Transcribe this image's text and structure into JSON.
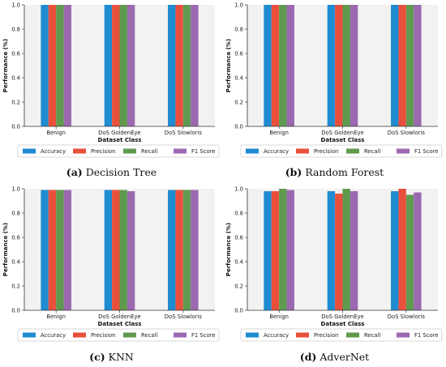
{
  "chart_data": [
    {
      "type": "bar",
      "caption_tag": "(a)",
      "caption_text": "Decision Tree",
      "categories": [
        "Benign",
        "DoS GoldenEye",
        "DoS Slowloris"
      ],
      "xlabel": "Dataset Class",
      "ylabel": "Performance (%)",
      "ylim": [
        0,
        1.0
      ],
      "yticks": [
        "0.0",
        "0.2",
        "0.4",
        "0.6",
        "0.8",
        "1.0"
      ],
      "grid": false,
      "legend_position": "bottom",
      "series": [
        {
          "name": "Accuracy",
          "color": "#1f8bd1",
          "values": [
            1.0,
            1.0,
            1.0
          ]
        },
        {
          "name": "Precision",
          "color": "#e9503c",
          "values": [
            1.0,
            1.0,
            1.0
          ]
        },
        {
          "name": "Recall",
          "color": "#5f9a4e",
          "values": [
            1.0,
            1.0,
            1.0
          ]
        },
        {
          "name": "F1 Score",
          "color": "#9b69b0",
          "values": [
            1.0,
            1.0,
            1.0
          ]
        }
      ]
    },
    {
      "type": "bar",
      "caption_tag": "(b)",
      "caption_text": "Random Forest",
      "categories": [
        "Benign",
        "DoS GoldenEye",
        "DoS Slowloris"
      ],
      "xlabel": "Dataset Class",
      "ylabel": "Performance (%)",
      "ylim": [
        0,
        1.0
      ],
      "yticks": [
        "0.0",
        "0.2",
        "0.4",
        "0.6",
        "0.8",
        "1.0"
      ],
      "grid": false,
      "legend_position": "bottom",
      "series": [
        {
          "name": "Accuracy",
          "color": "#1f8bd1",
          "values": [
            1.0,
            1.0,
            1.0
          ]
        },
        {
          "name": "Precision",
          "color": "#e9503c",
          "values": [
            1.0,
            1.0,
            1.0
          ]
        },
        {
          "name": "Recall",
          "color": "#5f9a4e",
          "values": [
            1.0,
            1.0,
            1.0
          ]
        },
        {
          "name": "F1 Score",
          "color": "#9b69b0",
          "values": [
            1.0,
            1.0,
            1.0
          ]
        }
      ]
    },
    {
      "type": "bar",
      "caption_tag": "(c)",
      "caption_text": "KNN",
      "categories": [
        "Benign",
        "DoS GoldenEye",
        "DoS Slowloris"
      ],
      "xlabel": "Dataset Class",
      "ylabel": "Performance (%)",
      "ylim": [
        0,
        1.0
      ],
      "yticks": [
        "0.0",
        "0.2",
        "0.4",
        "0.6",
        "0.8",
        "1.0"
      ],
      "grid": false,
      "legend_position": "bottom",
      "series": [
        {
          "name": "Accuracy",
          "color": "#1f8bd1",
          "values": [
            0.99,
            0.99,
            0.99
          ]
        },
        {
          "name": "Precision",
          "color": "#e9503c",
          "values": [
            0.99,
            0.99,
            0.99
          ]
        },
        {
          "name": "Recall",
          "color": "#5f9a4e",
          "values": [
            0.99,
            0.99,
            0.99
          ]
        },
        {
          "name": "F1 Score",
          "color": "#9b69b0",
          "values": [
            0.99,
            0.98,
            0.99
          ]
        }
      ]
    },
    {
      "type": "bar",
      "caption_tag": "(d)",
      "caption_text": "AdverNet",
      "categories": [
        "Benign",
        "DoS GoldenEye",
        "DoS Slowloris"
      ],
      "xlabel": "Dataset Class",
      "ylabel": "Performance (%)",
      "ylim": [
        0,
        1.0
      ],
      "yticks": [
        "0.0",
        "0.2",
        "0.4",
        "0.6",
        "0.8",
        "1.0"
      ],
      "grid": false,
      "legend_position": "bottom",
      "series": [
        {
          "name": "Accuracy",
          "color": "#1f8bd1",
          "values": [
            0.98,
            0.98,
            0.98
          ]
        },
        {
          "name": "Precision",
          "color": "#e9503c",
          "values": [
            0.98,
            0.96,
            1.0
          ]
        },
        {
          "name": "Recall",
          "color": "#5f9a4e",
          "values": [
            1.0,
            1.0,
            0.95
          ]
        },
        {
          "name": "F1 Score",
          "color": "#9b69b0",
          "values": [
            0.99,
            0.98,
            0.97
          ]
        }
      ]
    }
  ]
}
